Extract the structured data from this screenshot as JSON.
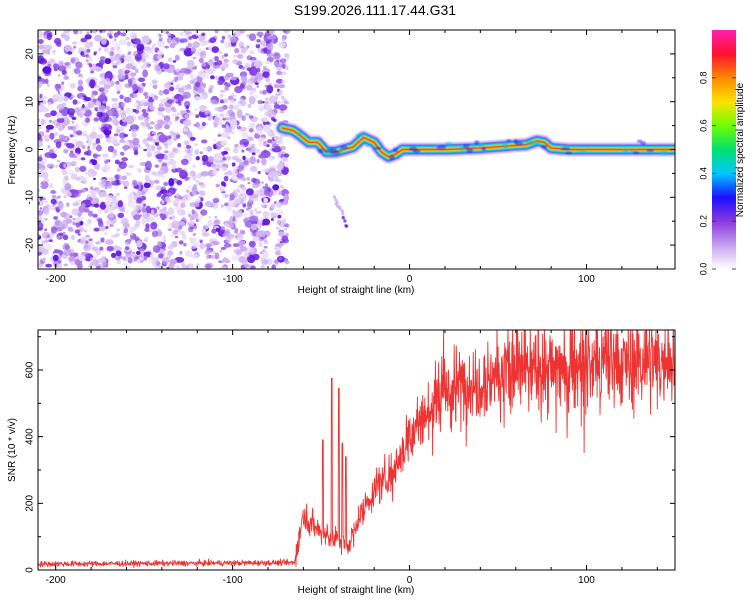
{
  "title": "S199.2026.111.17.44.G31",
  "chart_data": [
    {
      "type": "heatmap",
      "xlabel": "Height of straight line (km)",
      "ylabel": "Frequency (Hz)",
      "xlim": [
        -210,
        150
      ],
      "ylim": [
        -25,
        25
      ],
      "xticks": [
        -200,
        -100,
        0,
        100
      ],
      "xtick_labels": [
        "-200",
        "-100",
        "0",
        "100"
      ],
      "yticks": [
        -20,
        -10,
        0,
        10,
        20
      ],
      "ytick_labels": [
        "-20",
        "-10",
        "0",
        "10",
        "20"
      ],
      "noise_region_x": [
        -210,
        -72
      ],
      "ridge": [
        {
          "x": -72,
          "f": 4.5
        },
        {
          "x": -66,
          "f": 4.0
        },
        {
          "x": -62,
          "f": 3.0
        },
        {
          "x": -57,
          "f": 1.5
        },
        {
          "x": -52,
          "f": 1.5
        },
        {
          "x": -47,
          "f": -0.5
        },
        {
          "x": -42,
          "f": -0.5
        },
        {
          "x": -37,
          "f": 0.0
        },
        {
          "x": -32,
          "f": 0.5
        },
        {
          "x": -26,
          "f": 2.5
        },
        {
          "x": -20,
          "f": 1.5
        },
        {
          "x": -16,
          "f": -0.5
        },
        {
          "x": -12,
          "f": -1.5
        },
        {
          "x": -8,
          "f": -1.0
        },
        {
          "x": -4,
          "f": 0.0
        },
        {
          "x": 0,
          "f": 0.0
        },
        {
          "x": 20,
          "f": 0.0
        },
        {
          "x": 40,
          "f": 0.3
        },
        {
          "x": 58,
          "f": 0.8
        },
        {
          "x": 66,
          "f": 1.0
        },
        {
          "x": 72,
          "f": 1.8
        },
        {
          "x": 76,
          "f": 1.5
        },
        {
          "x": 80,
          "f": 0.3
        },
        {
          "x": 90,
          "f": 0.0
        },
        {
          "x": 150,
          "f": 0.0
        }
      ],
      "colorbar": {
        "label": "Normalized spectral amplitude",
        "range": [
          0,
          1
        ],
        "ticks": [
          0.0,
          0.2,
          0.4,
          0.6,
          0.8
        ],
        "tick_labels": [
          "0.0",
          "0.2",
          "0.4",
          "0.6",
          "0.8"
        ],
        "colors": [
          "#ffffff",
          "#c8a0f0",
          "#8c38e0",
          "#1a10ff",
          "#00c8ff",
          "#00e070",
          "#70ff00",
          "#ffe000",
          "#ff8800",
          "#ff1030",
          "#ff20b0"
        ]
      }
    },
    {
      "type": "line",
      "xlabel": "Height of straight line (km)",
      "ylabel": "SNR (10 * v/v)",
      "xlim": [
        -210,
        150
      ],
      "ylim": [
        0,
        720
      ],
      "xticks": [
        -200,
        -100,
        0,
        100
      ],
      "xtick_labels": [
        "-200",
        "-100",
        "0",
        "100"
      ],
      "yticks": [
        0,
        200,
        400,
        600
      ],
      "ytick_labels": [
        "0",
        "200",
        "400",
        "600"
      ],
      "series": [
        {
          "name": "SNR",
          "color": "#ee3333",
          "profile": [
            {
              "x": -210,
              "y": 18
            },
            {
              "x": -65,
              "y": 22
            },
            {
              "x": -60,
              "y": 170
            },
            {
              "x": -50,
              "y": 110
            },
            {
              "x": -40,
              "y": 90
            },
            {
              "x": -35,
              "y": 70
            },
            {
              "x": -28,
              "y": 160
            },
            {
              "x": -20,
              "y": 240
            },
            {
              "x": -10,
              "y": 300
            },
            {
              "x": 0,
              "y": 400
            },
            {
              "x": 10,
              "y": 470
            },
            {
              "x": 20,
              "y": 520
            },
            {
              "x": 30,
              "y": 560
            },
            {
              "x": 50,
              "y": 590
            },
            {
              "x": 80,
              "y": 605
            },
            {
              "x": 100,
              "y": 615
            },
            {
              "x": 130,
              "y": 625
            },
            {
              "x": 150,
              "y": 630
            }
          ],
          "spikes": [
            {
              "x": -44,
              "y": 575
            },
            {
              "x": -40,
              "y": 545
            },
            {
              "x": -49,
              "y": 390
            },
            {
              "x": -38,
              "y": 380
            },
            {
              "x": -36,
              "y": 340
            }
          ]
        }
      ]
    }
  ]
}
